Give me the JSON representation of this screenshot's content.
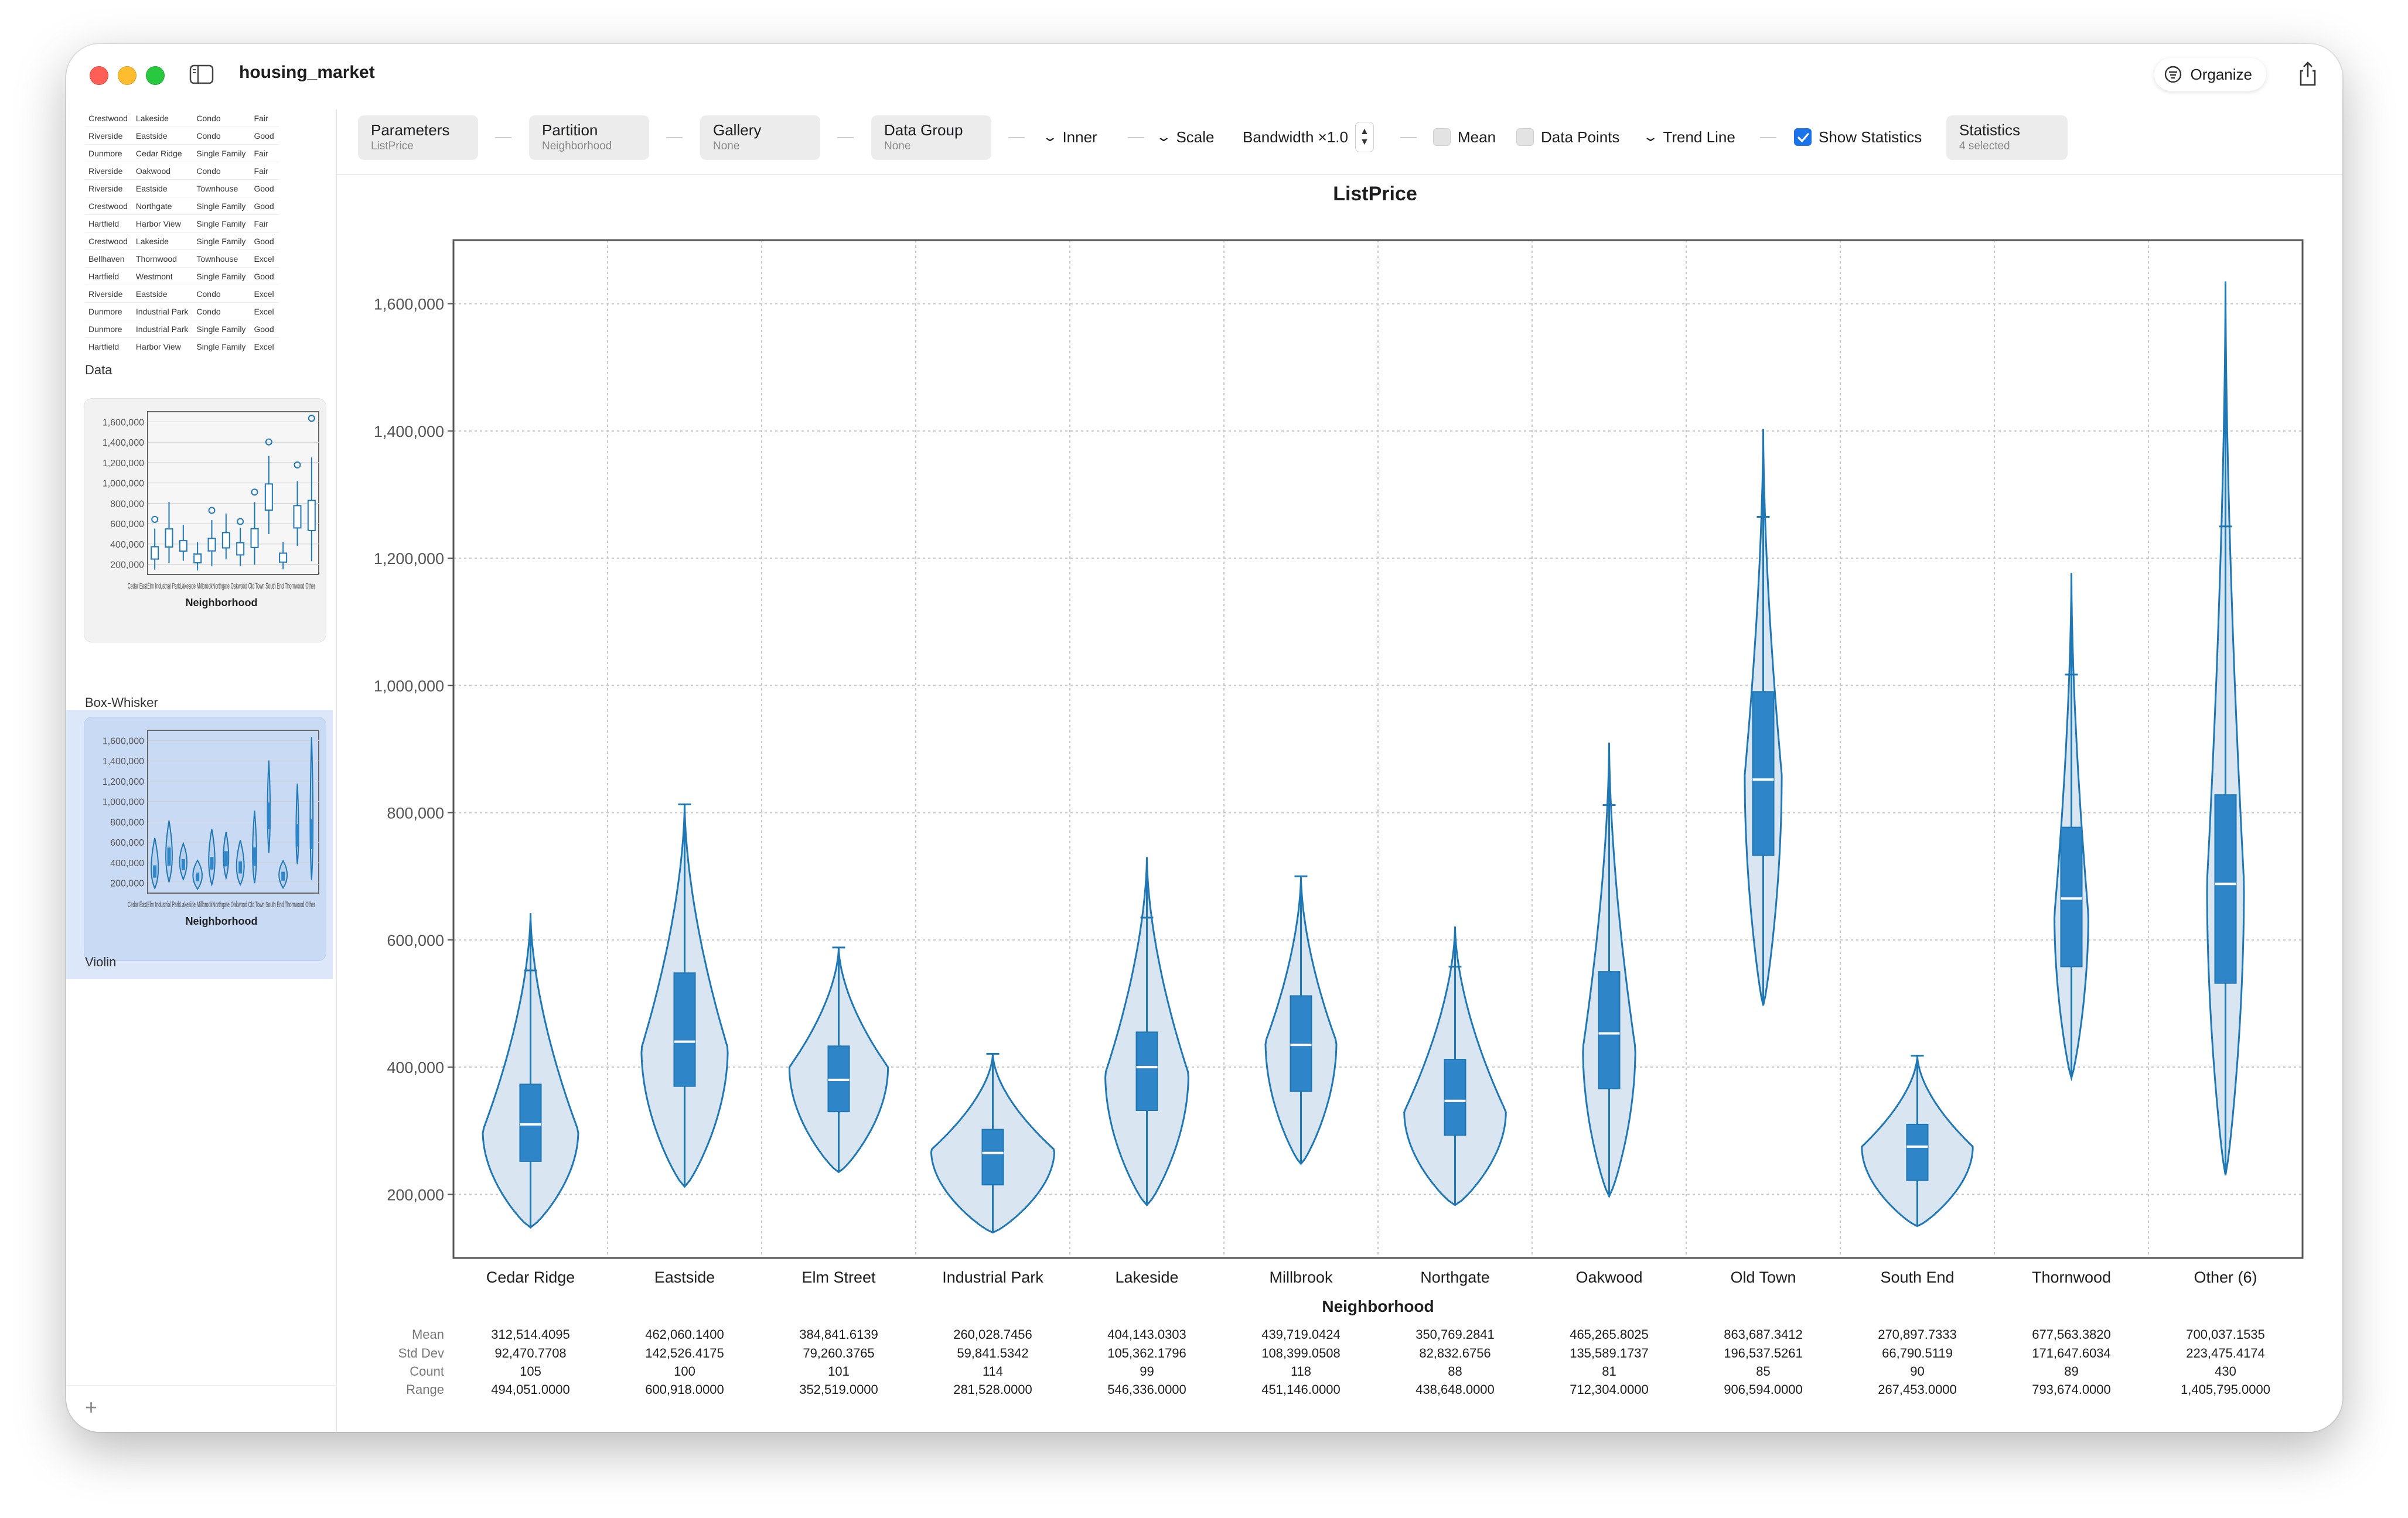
{
  "window": {
    "title": "housing_market",
    "organize_label": "Organize"
  },
  "sidebar": {
    "data_label": "Data",
    "box_label": "Box-Whisker",
    "violin_label": "Violin",
    "add_label": "+",
    "data_rows": [
      [
        "Crestwood",
        "Lakeside",
        "Condo",
        "Fair"
      ],
      [
        "Riverside",
        "Eastside",
        "Condo",
        "Good"
      ],
      [
        "Dunmore",
        "Cedar Ridge",
        "Single Family",
        "Fair"
      ],
      [
        "Riverside",
        "Oakwood",
        "Condo",
        "Fair"
      ],
      [
        "Riverside",
        "Eastside",
        "Townhouse",
        "Good"
      ],
      [
        "Crestwood",
        "Northgate",
        "Single Family",
        "Good"
      ],
      [
        "Hartfield",
        "Harbor View",
        "Single Family",
        "Fair"
      ],
      [
        "Crestwood",
        "Lakeside",
        "Single Family",
        "Good"
      ],
      [
        "Bellhaven",
        "Thornwood",
        "Townhouse",
        "Excel"
      ],
      [
        "Hartfield",
        "Westmont",
        "Single Family",
        "Good"
      ],
      [
        "Riverside",
        "Eastside",
        "Condo",
        "Excel"
      ],
      [
        "Dunmore",
        "Industrial Park",
        "Condo",
        "Excel"
      ],
      [
        "Dunmore",
        "Industrial Park",
        "Single Family",
        "Good"
      ],
      [
        "Hartfield",
        "Harbor View",
        "Single Family",
        "Excel"
      ]
    ],
    "thumb_yticks": [
      "1,600,000",
      "1,400,000",
      "1,200,000",
      "1,000,000",
      "800,000",
      "600,000",
      "400,000",
      "200,000"
    ],
    "thumb_xlabel": "Neighborhood",
    "thumb_xticks": "Cedar EastElm Industrial ParkLakeside MillbrookNorthgate Oakwood Old Town South End Thornwood Other"
  },
  "toolbar": {
    "parameters": {
      "label": "Parameters",
      "value": "ListPrice"
    },
    "partition": {
      "label": "Partition",
      "value": "Neighborhood"
    },
    "gallery": {
      "label": "Gallery",
      "value": "None"
    },
    "data_group": {
      "label": "Data Group",
      "value": "None"
    },
    "inner": "Inner",
    "scale": "Scale",
    "bandwidth": "Bandwidth ×1.0",
    "mean": "Mean",
    "data_points": "Data Points",
    "trend_line": "Trend Line",
    "show_statistics": "Show Statistics",
    "statistics": {
      "label": "Statistics",
      "value": "4 selected"
    }
  },
  "colors": {
    "accent": "#1f77b4",
    "violin_fill": "#d9e6f2",
    "box_fill": "#2e86c8",
    "checkbox_on": "#1a73e8"
  },
  "chart_data": {
    "type": "violin",
    "title": "ListPrice",
    "xlabel": "Neighborhood",
    "ylabel": "",
    "ylim": [
      100000,
      1700000
    ],
    "yticks": [
      200000,
      400000,
      600000,
      800000,
      1000000,
      1200000,
      1400000,
      1600000
    ],
    "ytick_labels": [
      "200,000",
      "400,000",
      "600,000",
      "800,000",
      "1,000,000",
      "1,200,000",
      "1,400,000",
      "1,600,000"
    ],
    "grid": true,
    "categories": [
      "Cedar Ridge",
      "Eastside",
      "Elm Street",
      "Industrial Park",
      "Lakeside",
      "Millbrook",
      "Northgate",
      "Oakwood",
      "Old Town",
      "South End",
      "Thornwood",
      "Other (6)"
    ],
    "series": [
      {
        "min": 148000,
        "max": 642000,
        "q1": 252000,
        "median": 310000,
        "q3": 373000,
        "whisker_hi": 552000,
        "mode": 300000,
        "halfwidth": 0.31
      },
      {
        "min": 212000,
        "max": 813000,
        "q1": 370000,
        "median": 440000,
        "q3": 548000,
        "whisker_hi": 813000,
        "mode": 430000,
        "halfwidth": 0.28
      },
      {
        "min": 235000,
        "max": 588000,
        "q1": 330000,
        "median": 380000,
        "q3": 433000,
        "whisker_hi": 588000,
        "mode": 400000,
        "halfwidth": 0.32
      },
      {
        "min": 140000,
        "max": 421000,
        "q1": 215000,
        "median": 265000,
        "q3": 302000,
        "whisker_hi": 421000,
        "mode": 270000,
        "halfwidth": 0.4
      },
      {
        "min": 183000,
        "max": 730000,
        "q1": 332000,
        "median": 400000,
        "q3": 455000,
        "whisker_hi": 635000,
        "mode": 390000,
        "halfwidth": 0.27
      },
      {
        "min": 248000,
        "max": 700000,
        "q1": 362000,
        "median": 435000,
        "q3": 512000,
        "whisker_hi": 700000,
        "mode": 440000,
        "halfwidth": 0.23
      },
      {
        "min": 183000,
        "max": 621000,
        "q1": 293000,
        "median": 347000,
        "q3": 412000,
        "whisker_hi": 558000,
        "mode": 330000,
        "halfwidth": 0.33
      },
      {
        "min": 197000,
        "max": 910000,
        "q1": 366000,
        "median": 453000,
        "q3": 550000,
        "whisker_hi": 812000,
        "mode": 430000,
        "halfwidth": 0.17
      },
      {
        "min": 497000,
        "max": 1403000,
        "q1": 733000,
        "median": 852000,
        "q3": 990000,
        "whisker_hi": 1265000,
        "mode": 860000,
        "halfwidth": 0.12
      },
      {
        "min": 150000,
        "max": 418000,
        "q1": 222000,
        "median": 275000,
        "q3": 310000,
        "whisker_hi": 418000,
        "mode": 275000,
        "halfwidth": 0.36
      },
      {
        "min": 383000,
        "max": 1177000,
        "q1": 558000,
        "median": 665000,
        "q3": 777000,
        "whisker_hi": 1017000,
        "mode": 640000,
        "halfwidth": 0.11
      },
      {
        "min": 230000,
        "max": 1635000,
        "q1": 532000,
        "median": 688000,
        "q3": 828000,
        "whisker_hi": 1250000,
        "mode": 690000,
        "halfwidth": 0.12
      }
    ],
    "statistics": {
      "labels": [
        "Mean",
        "Std Dev",
        "Count",
        "Range"
      ],
      "values": [
        [
          "312,514.4095",
          "92,470.7708",
          "105",
          "494,051.0000"
        ],
        [
          "462,060.1400",
          "142,526.4175",
          "100",
          "600,918.0000"
        ],
        [
          "384,841.6139",
          "79,260.3765",
          "101",
          "352,519.0000"
        ],
        [
          "260,028.7456",
          "59,841.5342",
          "114",
          "281,528.0000"
        ],
        [
          "404,143.0303",
          "105,362.1796",
          "99",
          "546,336.0000"
        ],
        [
          "439,719.0424",
          "108,399.0508",
          "118",
          "451,146.0000"
        ],
        [
          "350,769.2841",
          "82,832.6756",
          "88",
          "438,648.0000"
        ],
        [
          "465,265.8025",
          "135,589.1737",
          "81",
          "712,304.0000"
        ],
        [
          "863,687.3412",
          "196,537.5261",
          "85",
          "906,594.0000"
        ],
        [
          "270,897.7333",
          "66,790.5119",
          "90",
          "267,453.0000"
        ],
        [
          "677,563.3820",
          "171,647.6034",
          "89",
          "793,674.0000"
        ],
        [
          "700,037.1535",
          "223,475.4174",
          "430",
          "1,405,795.0000"
        ]
      ]
    }
  }
}
